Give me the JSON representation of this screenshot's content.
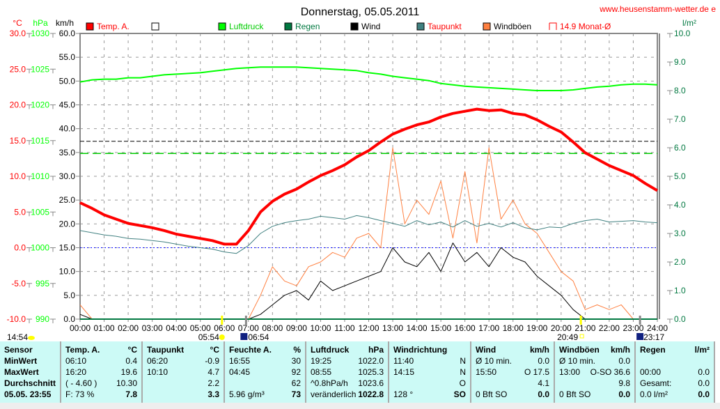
{
  "title": "Donnerstag, 05.05.2011",
  "website": "www.heusenstamm-wetter.de e",
  "axes": {
    "temp_unit": "°C",
    "pressure_unit": "hPa",
    "wind_unit": "km/h",
    "rain_unit": "l/m²"
  },
  "legend": [
    {
      "label": "Temp. A.",
      "color": "#ff0000",
      "text_color": "#ff0000"
    },
    {
      "label": "",
      "color": "#ffffff",
      "text_color": "#000000"
    },
    {
      "label": "Luftdruck",
      "color": "#00ff00",
      "text_color": "#00cc00"
    },
    {
      "label": "Regen",
      "color": "#007840",
      "text_color": "#007840"
    },
    {
      "label": "Wind",
      "color": "#000000",
      "text_color": "#000000"
    },
    {
      "label": "Taupunkt",
      "color": "#408080",
      "text_color": "#ff0000"
    },
    {
      "label": "Windböen",
      "color": "#ff8040",
      "text_color": "#000000"
    },
    {
      "label": "14.9 Monat-Ø",
      "color": "none",
      "text_color": "#ff0000"
    }
  ],
  "sun": {
    "left_time": "14:54",
    "sunrise": "05:54",
    "moonrise": "06:54",
    "sunset": "20:49",
    "moonset": "23:17"
  },
  "chart_data": {
    "type": "line",
    "title": "Donnerstag, 05.05.2011",
    "x_ticks": [
      "00:00",
      "01:00",
      "02:00",
      "03:00",
      "04:00",
      "05:00",
      "06:00",
      "07:00",
      "08:00",
      "09:00",
      "10:00",
      "11:00",
      "12:00",
      "13:00",
      "14:00",
      "15:00",
      "16:00",
      "17:00",
      "18:00",
      "19:00",
      "20:00",
      "21:00",
      "22:00",
      "23:00",
      "24:00"
    ],
    "temp_ticks": [
      "30.0",
      "25.0",
      "20.0",
      "15.0",
      "10.0",
      "5.0",
      "0.0",
      "-5.0",
      "-10.0"
    ],
    "pressure_ticks": [
      "1030",
      "1025",
      "1020",
      "1015",
      "1010",
      "1005",
      "1000",
      "995",
      "990"
    ],
    "wind_ticks": [
      "60.0",
      "55.0",
      "50.0",
      "45.0",
      "40.0",
      "35.0",
      "30.0",
      "25.0",
      "20.0",
      "15.0",
      "10.0",
      "5.0",
      "0.0"
    ],
    "rain_ticks": [
      "10.0",
      "9.0",
      "8.0",
      "7.0",
      "6.0",
      "5.0",
      "4.0",
      "3.0",
      "2.0",
      "1.0",
      "0.0"
    ],
    "ylim_temp": [
      -10,
      30
    ],
    "ylim_pressure": [
      990,
      1030
    ],
    "ylim_wind": [
      0,
      60
    ],
    "ylim_rain": [
      0,
      10
    ],
    "x_hours": [
      0,
      0.5,
      1,
      1.5,
      2,
      2.5,
      3,
      3.5,
      4,
      4.5,
      5,
      5.5,
      6,
      6.5,
      7,
      7.5,
      8,
      8.5,
      9,
      9.5,
      10,
      10.5,
      11,
      11.5,
      12,
      12.5,
      13,
      13.5,
      14,
      14.5,
      15,
      15.5,
      16,
      16.5,
      17,
      17.5,
      18,
      18.5,
      19,
      19.5,
      20,
      20.5,
      21,
      21.5,
      22,
      22.5,
      23,
      23.5,
      24
    ],
    "series": [
      {
        "name": "Temp. A.",
        "axis": "temp",
        "color": "#ff0000",
        "values": [
          6.3,
          5.5,
          4.6,
          4.0,
          3.4,
          3.1,
          2.8,
          2.4,
          1.9,
          1.6,
          1.3,
          1.0,
          0.5,
          0.5,
          2.4,
          5.0,
          6.5,
          7.5,
          8.2,
          9.2,
          10.1,
          10.8,
          11.6,
          12.7,
          13.6,
          14.8,
          15.9,
          16.6,
          17.2,
          17.6,
          18.3,
          18.8,
          19.1,
          19.4,
          19.2,
          19.3,
          18.8,
          18.6,
          17.9,
          17.0,
          16.2,
          14.8,
          13.3,
          12.4,
          11.5,
          10.8,
          10.1,
          9.0,
          8.0
        ]
      },
      {
        "name": "Luftdruck",
        "axis": "pressure",
        "color": "#00ff00",
        "values": [
          1023.2,
          1023.5,
          1023.6,
          1023.6,
          1023.8,
          1023.8,
          1024.0,
          1024.2,
          1024.3,
          1024.4,
          1024.5,
          1024.7,
          1024.9,
          1025.1,
          1025.2,
          1025.3,
          1025.3,
          1025.3,
          1025.3,
          1025.2,
          1025.1,
          1025.0,
          1024.9,
          1024.8,
          1024.5,
          1024.3,
          1024.0,
          1023.8,
          1023.6,
          1023.4,
          1023.0,
          1022.8,
          1022.6,
          1022.5,
          1022.4,
          1022.3,
          1022.2,
          1022.1,
          1022.0,
          1022.0,
          1022.0,
          1022.1,
          1022.3,
          1022.5,
          1022.6,
          1022.8,
          1022.9,
          1022.9,
          1022.8
        ]
      },
      {
        "name": "Taupunkt",
        "axis": "temp",
        "color": "#408080",
        "values": [
          2.4,
          2.1,
          1.8,
          1.6,
          1.3,
          1.2,
          1.0,
          0.8,
          0.5,
          0.2,
          0.0,
          -0.2,
          -0.6,
          -0.8,
          0.3,
          2.0,
          3.0,
          3.5,
          3.8,
          4.0,
          4.4,
          4.2,
          4.0,
          4.5,
          4.2,
          3.8,
          3.4,
          3.0,
          3.8,
          3.2,
          3.6,
          2.9,
          3.8,
          3.0,
          3.4,
          2.9,
          3.5,
          2.8,
          2.5,
          2.9,
          2.8,
          3.4,
          3.8,
          4.0,
          3.6,
          3.7,
          3.8,
          3.6,
          3.5
        ]
      },
      {
        "name": "Windböen",
        "axis": "wind",
        "color": "#ff8040",
        "values": [
          3,
          0,
          0,
          0,
          0,
          0,
          0,
          0,
          0,
          0,
          0,
          0,
          0,
          0,
          0,
          5,
          11,
          8,
          7,
          11,
          12,
          14,
          13,
          17,
          18,
          15,
          36,
          20,
          25,
          22,
          29,
          17,
          31,
          16,
          36,
          21,
          25,
          20,
          18,
          14,
          10,
          8,
          2,
          3,
          2,
          3,
          0,
          0,
          0
        ]
      },
      {
        "name": "Wind",
        "axis": "wind",
        "color": "#000000",
        "values": [
          1,
          0,
          0,
          0,
          0,
          0,
          0,
          0,
          0,
          0,
          0,
          0,
          0,
          0,
          0,
          1,
          3,
          5,
          6,
          4,
          8,
          6,
          7,
          8,
          9,
          10,
          15,
          12,
          11,
          14,
          10,
          16,
          12,
          14,
          11,
          15,
          13,
          12,
          9,
          7,
          5,
          2,
          0,
          0,
          0,
          0,
          0,
          0,
          0
        ]
      }
    ],
    "reference_lines": [
      {
        "name": "Monat-Ø temp",
        "value": 14.9,
        "axis": "temp",
        "color": "#000000"
      },
      {
        "name": "normal pressure",
        "value": 1013.2,
        "axis": "pressure",
        "color": "#00cc00"
      },
      {
        "name": "freezing",
        "value": 0,
        "axis": "temp",
        "color": "#0000ff"
      }
    ]
  },
  "table": {
    "columns": [
      {
        "h1": "Sensor",
        "h2": "",
        "rows": [
          [
            "MinWert",
            ""
          ],
          [
            "MaxWert",
            ""
          ],
          [
            "Durchschnitt",
            ""
          ],
          [
            "05.05. 23:55",
            ""
          ]
        ],
        "bold_label": true,
        "w": 88
      },
      {
        "h1": "Temp. A.",
        "h2": "°C",
        "rows": [
          [
            "06:10",
            "0.4"
          ],
          [
            "16:20",
            "19.6"
          ],
          [
            "( - 4.60 )",
            "10.30"
          ],
          [
            "F: 73 %",
            "7.8"
          ]
        ],
        "w": 117
      },
      {
        "h1": "Taupunkt",
        "h2": "°C",
        "rows": [
          [
            "06:20",
            "-0.9"
          ],
          [
            "10:10",
            "4.7"
          ],
          [
            "",
            "2.2"
          ],
          [
            "",
            "3.3"
          ]
        ],
        "w": 118
      },
      {
        "h1": "Feuchte A.",
        "h2": "%",
        "rows": [
          [
            "16:55",
            "30"
          ],
          [
            "04:45",
            "92"
          ],
          [
            "",
            "62"
          ],
          [
            "5.96 g/m³",
            "73"
          ]
        ],
        "w": 117
      },
      {
        "h1": "Luftdruck",
        "h2": "hPa",
        "rows": [
          [
            "19:25",
            "1022.0"
          ],
          [
            "08:55",
            "1025.3"
          ],
          [
            "^0.8hPa/h",
            "1023.6"
          ],
          [
            "veränderlich",
            "1022.8"
          ]
        ],
        "w": 119
      },
      {
        "h1": "Windrichtung",
        "h2": "",
        "rows": [
          [
            "11:40",
            "N"
          ],
          [
            "14:15",
            "N"
          ],
          [
            "",
            "O"
          ],
          [
            "128 °",
            "SO"
          ]
        ],
        "w": 118
      },
      {
        "h1": "Wind",
        "h2": "km/h",
        "rows": [
          [
            "Ø 10 min.",
            "0.0"
          ],
          [
            "15:50",
            "O 17.5"
          ],
          [
            "",
            "4.1"
          ],
          [
            "0 Bft SO",
            "0.0"
          ]
        ],
        "w": 120
      },
      {
        "h1": "Windböen",
        "h2": "km/h",
        "rows": [
          [
            "Ø 10 min.",
            "0.0"
          ],
          [
            "13:00",
            "O-SO 36.6"
          ],
          [
            "",
            "9.8"
          ],
          [
            "0 Bft SO",
            "0.0"
          ]
        ],
        "w": 116
      },
      {
        "h1": "Regen",
        "h2": "l/m²",
        "rows": [
          [
            "",
            ""
          ],
          [
            "00:00",
            "0.0"
          ],
          [
            "Gesamt:",
            "0.0"
          ],
          [
            "0.0 l/m²",
            "0.0"
          ]
        ],
        "w": 114
      }
    ]
  }
}
